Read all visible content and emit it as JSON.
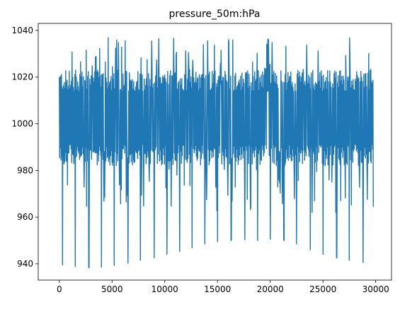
{
  "chart_data": {
    "type": "line",
    "title": "pressure_50m:hPa",
    "xlabel": "",
    "ylabel": "",
    "xlim": [
      -2000,
      31500
    ],
    "ylim": [
      933,
      1043
    ],
    "x_ticks": [
      0,
      5000,
      10000,
      15000,
      20000,
      25000,
      30000
    ],
    "x_tick_labels": [
      "0",
      "5000",
      "10000",
      "15000",
      "20000",
      "25000",
      "30000"
    ],
    "y_ticks": [
      940,
      960,
      980,
      1000,
      1020,
      1040
    ],
    "y_tick_labels": [
      "940",
      "960",
      "980",
      "1000",
      "1020",
      "1040"
    ],
    "grid": false,
    "legend": "none",
    "series": [
      {
        "color": "#1f77b4",
        "x_range": [
          0,
          29800
        ],
        "core_band": [
          982,
          1023
        ],
        "max": 1037,
        "min": 938,
        "deep_minima": [
          {
            "x": 300,
            "y": 939.5
          },
          {
            "x": 1500,
            "y": 938.8
          },
          {
            "x": 2800,
            "y": 938.3
          },
          {
            "x": 4000,
            "y": 938.5
          },
          {
            "x": 5200,
            "y": 939.3
          },
          {
            "x": 6500,
            "y": 940.3
          },
          {
            "x": 7700,
            "y": 941.5
          },
          {
            "x": 9000,
            "y": 942.5
          },
          {
            "x": 10200,
            "y": 944.0
          },
          {
            "x": 11400,
            "y": 945.3
          },
          {
            "x": 12600,
            "y": 946.8
          },
          {
            "x": 13800,
            "y": 948.5
          },
          {
            "x": 15000,
            "y": 949.5
          },
          {
            "x": 16300,
            "y": 950.0
          },
          {
            "x": 17600,
            "y": 950.3
          },
          {
            "x": 18800,
            "y": 950.0
          },
          {
            "x": 20000,
            "y": 950.5
          },
          {
            "x": 21300,
            "y": 950.0
          },
          {
            "x": 22500,
            "y": 948.5
          },
          {
            "x": 23800,
            "y": 946.0
          },
          {
            "x": 25000,
            "y": 944.0
          },
          {
            "x": 26300,
            "y": 942.5
          },
          {
            "x": 27500,
            "y": 941.5
          },
          {
            "x": 28800,
            "y": 940.5
          }
        ]
      }
    ]
  }
}
